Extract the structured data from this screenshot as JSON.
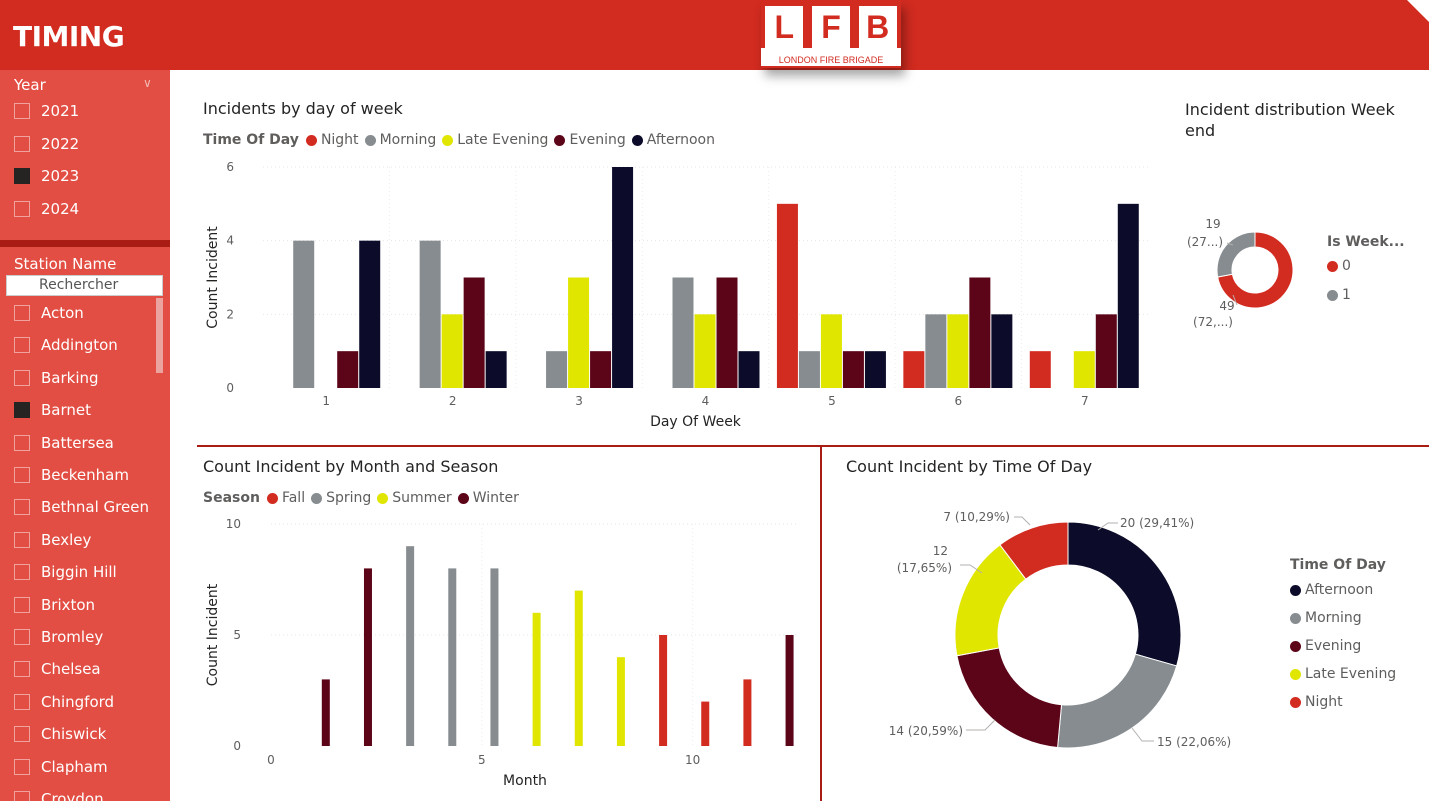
{
  "header": {
    "title": "TIMING",
    "logo_letters": [
      "L",
      "F",
      "B"
    ],
    "logo_subtitle": "LONDON FIRE BRIGADE"
  },
  "filters": {
    "year": {
      "label": "Year",
      "options": [
        {
          "label": "2021",
          "checked": false
        },
        {
          "label": "2022",
          "checked": false
        },
        {
          "label": "2023",
          "checked": true
        },
        {
          "label": "2024",
          "checked": false
        }
      ]
    },
    "station": {
      "label": "Station Name",
      "search_placeholder": "Rechercher",
      "options": [
        {
          "label": "Acton",
          "checked": false
        },
        {
          "label": "Addington",
          "checked": false
        },
        {
          "label": "Barking",
          "checked": false
        },
        {
          "label": "Barnet",
          "checked": true
        },
        {
          "label": "Battersea",
          "checked": false
        },
        {
          "label": "Beckenham",
          "checked": false
        },
        {
          "label": "Bethnal Green",
          "checked": false
        },
        {
          "label": "Bexley",
          "checked": false
        },
        {
          "label": "Biggin Hill",
          "checked": false
        },
        {
          "label": "Brixton",
          "checked": false
        },
        {
          "label": "Bromley",
          "checked": false
        },
        {
          "label": "Chelsea",
          "checked": false
        },
        {
          "label": "Chingford",
          "checked": false
        },
        {
          "label": "Chiswick",
          "checked": false
        },
        {
          "label": "Clapham",
          "checked": false
        },
        {
          "label": "Croydon",
          "checked": false
        }
      ]
    }
  },
  "colors": {
    "Night": "#d22b20",
    "Morning": "#868c8f",
    "Late Evening": "#e0e600",
    "Evening": "#5c0519",
    "Afternoon": "#0c0c2a"
  },
  "charts": {
    "by_day": {
      "title": "Incidents by day of week",
      "legend_title": "Time Of Day",
      "chart_data": {
        "type": "bar",
        "xlabel": "Day Of Week",
        "ylabel": "Count Incident",
        "categories": [
          "1",
          "2",
          "3",
          "4",
          "5",
          "6",
          "7"
        ],
        "ylim": [
          0,
          6
        ],
        "yticks": [
          "0",
          "2",
          "4",
          "6"
        ],
        "series": [
          {
            "name": "Night",
            "values": [
              0,
              0,
              0,
              0,
              5,
              1,
              1
            ]
          },
          {
            "name": "Morning",
            "values": [
              4,
              4,
              1,
              3,
              1,
              2,
              0
            ]
          },
          {
            "name": "Late Evening",
            "values": [
              0,
              2,
              3,
              2,
              2,
              2,
              1
            ]
          },
          {
            "name": "Evening",
            "values": [
              1,
              3,
              1,
              3,
              1,
              3,
              2
            ]
          },
          {
            "name": "Afternoon",
            "values": [
              4,
              1,
              6,
              1,
              1,
              2,
              5
            ]
          }
        ]
      }
    },
    "weekend": {
      "title": "Incident distribution Week end",
      "legend_title": "Is Week...",
      "chart_data": {
        "type": "pie",
        "slices": [
          {
            "label": "0",
            "value": 49,
            "display": "49",
            "sub": "(72,...)",
            "color": "#d22b20"
          },
          {
            "label": "1",
            "value": 19,
            "display": "19",
            "sub": "(27...)",
            "color": "#868c8f"
          }
        ]
      }
    },
    "by_month": {
      "title": "Count Incident by Month and Season",
      "legend_title": "Season",
      "season_colors": {
        "Fall": "#d22b20",
        "Spring": "#868c8f",
        "Summer": "#e0e600",
        "Winter": "#5c0519"
      },
      "chart_data": {
        "type": "bar",
        "xlabel": "Month",
        "ylabel": "Count Incident",
        "xlim": [
          0,
          12.5
        ],
        "ylim": [
          0,
          10
        ],
        "xticks": [
          "0",
          "5",
          "10"
        ],
        "yticks": [
          "0",
          "5",
          "10"
        ],
        "series": [
          {
            "name": "Fall",
            "points": [
              [
                9,
                5
              ],
              [
                10,
                2
              ],
              [
                11,
                3
              ]
            ]
          },
          {
            "name": "Spring",
            "points": [
              [
                3,
                9
              ],
              [
                4,
                8
              ],
              [
                5,
                8
              ]
            ]
          },
          {
            "name": "Summer",
            "points": [
              [
                6,
                6
              ],
              [
                7,
                7
              ],
              [
                8,
                4
              ]
            ]
          },
          {
            "name": "Winter",
            "points": [
              [
                1,
                3
              ],
              [
                2,
                8
              ],
              [
                12,
                5
              ]
            ]
          }
        ]
      }
    },
    "by_time": {
      "title": "Count Incident by Time Of Day",
      "legend_title": "Time Of Day",
      "chart_data": {
        "type": "pie",
        "slices": [
          {
            "label": "Afternoon",
            "value": 20,
            "display": "20 (29,41%)",
            "color": "#0c0c2a"
          },
          {
            "label": "Morning",
            "value": 15,
            "display": "15 (22,06%)",
            "color": "#868c8f"
          },
          {
            "label": "Evening",
            "value": 14,
            "display": "14 (20,59%)",
            "color": "#5c0519"
          },
          {
            "label": "Late Evening",
            "value": 12,
            "display": "12",
            "sub": "(17,65%)",
            "color": "#e0e600"
          },
          {
            "label": "Night",
            "value": 7,
            "display": "7 (10,29%)",
            "color": "#d22b20"
          }
        ]
      }
    }
  }
}
